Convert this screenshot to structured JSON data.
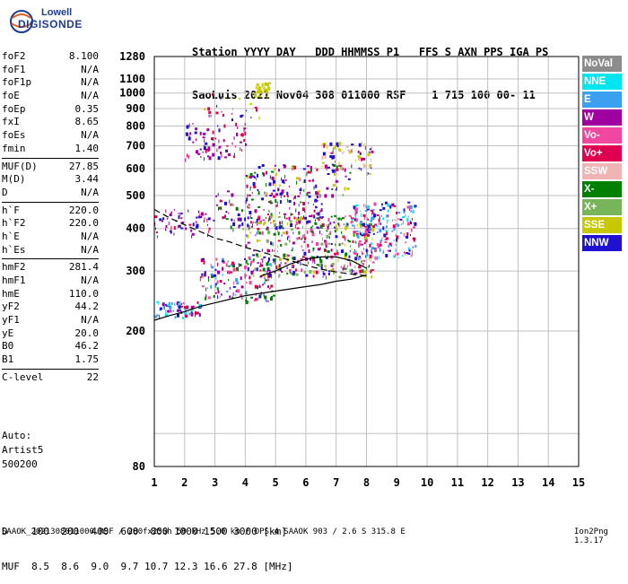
{
  "logo": {
    "line1": "Lowell",
    "line2": "DIGISONDE"
  },
  "header": {
    "line1": "Station YYYY DAY   DDD HHMMSS P1   FFS S AXN PPS IGA PS",
    "line2": "SaoLuis 2021 Nov04 308 011000 RSF    1 715 100 00- 11"
  },
  "params": [
    {
      "k": "foF2",
      "v": "8.100"
    },
    {
      "k": "foF1",
      "v": "N/A"
    },
    {
      "k": "foF1p",
      "v": "N/A"
    },
    {
      "k": "foE",
      "v": "N/A"
    },
    {
      "k": "foEp",
      "v": "0.35"
    },
    {
      "k": "fxI",
      "v": "8.65"
    },
    {
      "k": "foEs",
      "v": "N/A"
    },
    {
      "k": "fmin",
      "v": "1.40"
    },
    {
      "k": "MUF(D)",
      "v": "27.85"
    },
    {
      "k": "M(D)",
      "v": "3.44"
    },
    {
      "k": "D",
      "v": "N/A"
    },
    {
      "k": "h`F",
      "v": "220.0"
    },
    {
      "k": "h`F2",
      "v": "220.0"
    },
    {
      "k": "h`E",
      "v": "N/A"
    },
    {
      "k": "h`Es",
      "v": "N/A"
    },
    {
      "k": "hmF2",
      "v": "281.4"
    },
    {
      "k": "hmF1",
      "v": "N/A"
    },
    {
      "k": "hmE",
      "v": "110.0"
    },
    {
      "k": "yF2",
      "v": "44.2"
    },
    {
      "k": "yF1",
      "v": "N/A"
    },
    {
      "k": "yE",
      "v": "20.0"
    },
    {
      "k": "B0",
      "v": "46.2"
    },
    {
      "k": "B1",
      "v": "1.75"
    },
    {
      "k": "C-level",
      "v": "22"
    }
  ],
  "auto": {
    "l1": "Auto:",
    "l2": "Artist5",
    "l3": "500200"
  },
  "legend": [
    {
      "label": "NoVal",
      "color": "#8c8c8c"
    },
    {
      "label": "NNE",
      "color": "#00e5f0"
    },
    {
      "label": "E",
      "color": "#3ca0f0"
    },
    {
      "label": "W",
      "color": "#a000a0"
    },
    {
      "label": "Vo-",
      "color": "#f048a0"
    },
    {
      "label": "Vo+",
      "color": "#e00050"
    },
    {
      "label": "SSW",
      "color": "#f0b4b4"
    },
    {
      "label": "X-",
      "color": "#008000"
    },
    {
      "label": "X+",
      "color": "#78b45a"
    },
    {
      "label": "SSE",
      "color": "#c8c800"
    },
    {
      "label": "NNW",
      "color": "#2010d0"
    }
  ],
  "footer": {
    "line1": "D    100  200  400  600  800 1000 1500 3000 [km]",
    "line2": "MUF  8.5  8.6  9.0  9.7 10.7 12.3 16.6 27.8 [MHz]"
  },
  "bottom": "SAAOK_2021308011000.RSF / 280fx256h 50 kHz 5.0 km / DPS-4 SAAOK 903 / 2.6 S 315.8 E",
  "version": "Ion2Png 1.3.17",
  "chart_data": {
    "type": "scatter",
    "x_range": [
      1,
      15
    ],
    "y_range": [
      80,
      1280
    ],
    "y_scale": "log",
    "x_ticks": [
      "1",
      "2",
      "3",
      "4",
      "5",
      "6",
      "7",
      "8",
      "9",
      "10",
      "11",
      "12",
      "13",
      "14",
      "15"
    ],
    "y_ticks": [
      {
        "v": 1280,
        "label": "1280"
      },
      {
        "v": 1100,
        "label": "1100"
      },
      {
        "v": 1000,
        "label": "1000"
      },
      {
        "v": 900,
        "label": "900"
      },
      {
        "v": 800,
        "label": "800"
      },
      {
        "v": 700,
        "label": "700"
      },
      {
        "v": 600,
        "label": "600"
      },
      {
        "v": 500,
        "label": "500"
      },
      {
        "v": 400,
        "label": "400"
      },
      {
        "v": 300,
        "label": "300"
      },
      {
        "v": 200,
        "label": "200"
      },
      {
        "v": 80,
        "label": "80"
      }
    ],
    "y_grid": [
      100,
      200,
      300,
      400,
      500,
      600,
      700,
      800,
      900,
      1000,
      1100
    ],
    "grid": true,
    "traces": [
      {
        "name": "ordinary-trace",
        "x": [
          1.0,
          1.5,
          2.0,
          2.5,
          3.0,
          3.5,
          4.0,
          4.5,
          5.0,
          5.5,
          6.0,
          6.5,
          7.0,
          7.5,
          8.0
        ],
        "y": [
          215,
          222,
          228,
          236,
          242,
          248,
          254,
          258,
          262,
          266,
          270,
          274,
          280,
          284,
          292
        ]
      },
      {
        "name": "profile-upper",
        "x": [
          1.0,
          1.5,
          2.0,
          2.5,
          3.0,
          3.5,
          4.0,
          4.5,
          5.0,
          5.5,
          6.0,
          6.5,
          7.0,
          7.5,
          8.1
        ],
        "y": [
          455,
          430,
          410,
          392,
          375,
          365,
          352,
          342,
          332,
          322,
          312,
          304,
          298,
          294,
          290
        ]
      },
      {
        "name": "profile-lower",
        "x": [
          4.5,
          5.0,
          5.5,
          6.0,
          6.5,
          7.0,
          7.5,
          8.0
        ],
        "y": [
          290,
          300,
          315,
          325,
          330,
          330,
          322,
          306
        ]
      }
    ],
    "clusters": [
      {
        "xc": [
          1.0,
          2.5
        ],
        "yc": [
          220,
          245
        ],
        "colors": [
          "#e00050",
          "#a000a0",
          "#2010d0",
          "#00e5f0",
          "#3ca0f0"
        ],
        "n": 70
      },
      {
        "xc": [
          2.5,
          5.0
        ],
        "yc": [
          245,
          330
        ],
        "colors": [
          "#e00050",
          "#f048a0",
          "#a000a0",
          "#008000",
          "#2010d0",
          "#3ca0f0"
        ],
        "n": 160
      },
      {
        "xc": [
          4.0,
          8.2
        ],
        "yc": [
          290,
          440
        ],
        "colors": [
          "#e00050",
          "#f048a0",
          "#a000a0",
          "#008000",
          "#78b45a",
          "#c8c800",
          "#2010d0"
        ],
        "n": 420
      },
      {
        "xc": [
          7.5,
          9.6
        ],
        "yc": [
          330,
          480
        ],
        "colors": [
          "#3ca0f0",
          "#00e5f0",
          "#f048a0",
          "#e00050",
          "#2010d0"
        ],
        "n": 200
      },
      {
        "xc": [
          1.0,
          3.0
        ],
        "yc": [
          380,
          460
        ],
        "colors": [
          "#2010d0",
          "#a000a0",
          "#e00050"
        ],
        "n": 60
      },
      {
        "xc": [
          3.0,
          6.5
        ],
        "yc": [
          400,
          520
        ],
        "colors": [
          "#2010d0",
          "#a000a0",
          "#e00050",
          "#008000"
        ],
        "n": 130
      },
      {
        "xc": [
          4.0,
          7.5
        ],
        "yc": [
          500,
          620
        ],
        "colors": [
          "#2010d0",
          "#a000a0",
          "#e00050",
          "#008000",
          "#c8c800"
        ],
        "n": 110
      },
      {
        "xc": [
          6.5,
          8.2
        ],
        "yc": [
          580,
          720
        ],
        "colors": [
          "#c8c800",
          "#f0b4b4",
          "#e00050",
          "#2010d0"
        ],
        "n": 80
      },
      {
        "xc": [
          2.0,
          4.0
        ],
        "yc": [
          640,
          820
        ],
        "colors": [
          "#2010d0",
          "#a000a0",
          "#e00050"
        ],
        "n": 80
      },
      {
        "xc": [
          4.3,
          4.8
        ],
        "yc": [
          980,
          1080
        ],
        "colors": [
          "#c8c800"
        ],
        "n": 40
      },
      {
        "xc": [
          2.5,
          4.5
        ],
        "yc": [
          840,
          1000
        ],
        "colors": [
          "#2010d0",
          "#e00050",
          "#c8c800"
        ],
        "n": 25
      }
    ]
  }
}
